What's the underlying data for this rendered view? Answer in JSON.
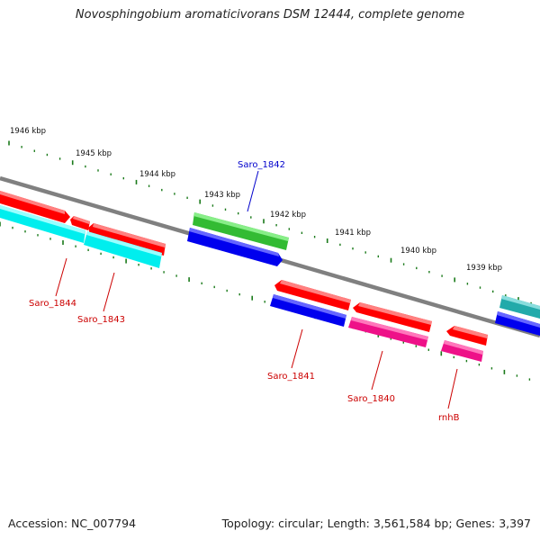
{
  "title": "Novosphingobium aromaticivorans DSM 12444, complete genome",
  "accession": "Accession: NC_007794",
  "summary": "Topology: circular; Length: 3,561,584 bp; Genes: 3,397",
  "ticks": [
    "1946 kbp",
    "1945 kbp",
    "1944 kbp",
    "1943 kbp",
    "1942 kbp",
    "1941 kbp",
    "1940 kbp",
    "1939 kbp"
  ],
  "genes": {
    "saro_1842": {
      "label": "Saro_1842",
      "color": "#0000cc"
    },
    "saro_1844": {
      "label": "Saro_1844",
      "color": "#cc0000"
    },
    "saro_1843": {
      "label": "Saro_1843",
      "color": "#cc0000"
    },
    "saro_1841": {
      "label": "Saro_1841",
      "color": "#cc0000"
    },
    "saro_1840": {
      "label": "Saro_1840",
      "color": "#cc0000"
    },
    "rnhb": {
      "label": "rnhB",
      "color": "#cc0000"
    }
  }
}
